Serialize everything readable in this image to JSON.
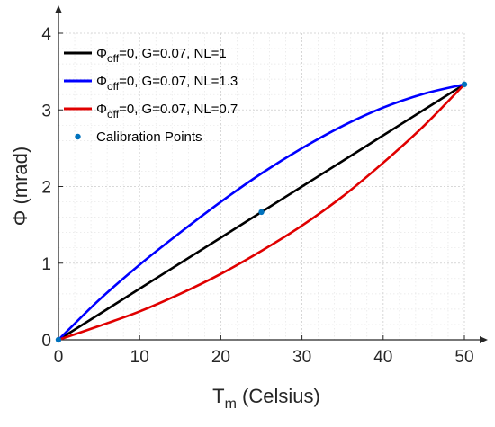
{
  "chart_data": {
    "type": "line",
    "title": "",
    "xlabel": {
      "main": "T",
      "sub": "m",
      "rest": " (Celsius)"
    },
    "ylabel": {
      "main": "Φ (mrad)"
    },
    "xlim": [
      0,
      50
    ],
    "ylim": [
      0,
      4
    ],
    "xticks": [
      "0",
      "10",
      "20",
      "30",
      "40",
      "50"
    ],
    "yticks": [
      "0",
      "1",
      "2",
      "3",
      "4"
    ],
    "grid": true,
    "legend_position": "top-left",
    "series": [
      {
        "name": {
          "main": "Φ",
          "sub": "off",
          "rest": "=0, G=0.07, NL=1"
        },
        "color": "#000000",
        "x": [
          0,
          5,
          10,
          15,
          20,
          25,
          30,
          35,
          40,
          45,
          50
        ],
        "y": [
          0,
          0.333,
          0.667,
          1.0,
          1.333,
          1.667,
          2.0,
          2.333,
          2.667,
          3.0,
          3.333
        ]
      },
      {
        "name": {
          "main": "Φ",
          "sub": "off",
          "rest": "=0, G=0.07, NL=1.3"
        },
        "color": "#0000ff",
        "x": [
          0,
          5,
          10,
          15,
          20,
          25,
          30,
          35,
          40,
          45,
          50
        ],
        "y": [
          0,
          0.52,
          0.98,
          1.4,
          1.8,
          2.17,
          2.5,
          2.79,
          3.03,
          3.21,
          3.333
        ]
      },
      {
        "name": {
          "main": "Φ",
          "sub": "off",
          "rest": "=0, G=0.07, NL=0.7"
        },
        "color": "#e00000",
        "x": [
          0,
          5,
          10,
          15,
          20,
          25,
          30,
          35,
          40,
          45,
          50
        ],
        "y": [
          0,
          0.18,
          0.37,
          0.6,
          0.86,
          1.16,
          1.49,
          1.87,
          2.31,
          2.79,
          3.333
        ]
      }
    ],
    "points": {
      "name": "Calibration Points",
      "color": "#0072bd",
      "x": [
        0,
        25,
        50
      ],
      "y": [
        0,
        1.667,
        3.333
      ]
    }
  }
}
